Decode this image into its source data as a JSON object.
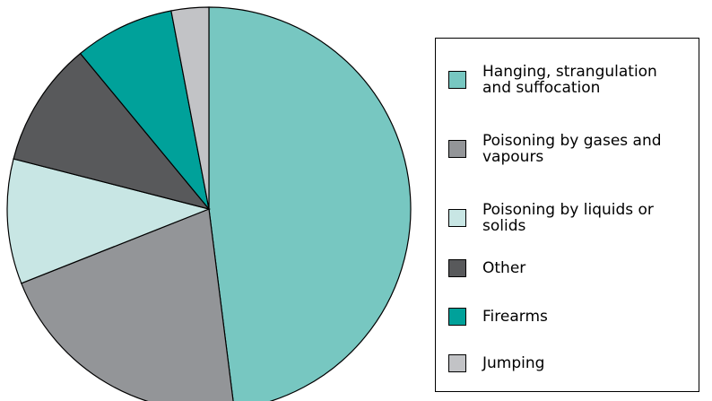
{
  "chart_data": {
    "type": "pie",
    "categories": [
      "Hanging, strangulation and suffocation",
      "Poisoning by gases and vapours",
      "Poisoning by liquids or solids",
      "Other",
      "Firearms",
      "Jumping"
    ],
    "values": [
      48,
      21,
      10,
      10,
      8,
      3
    ],
    "colors": [
      "#77c7c1",
      "#939598",
      "#c8e6e4",
      "#58595b",
      "#00a19a",
      "#c2c3c6"
    ]
  }
}
